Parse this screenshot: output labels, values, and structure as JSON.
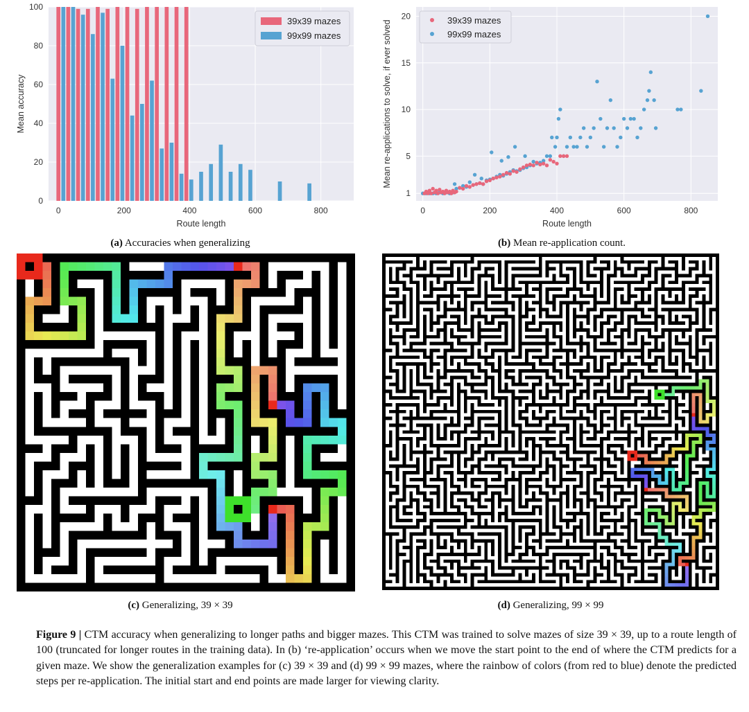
{
  "chart_data": [
    {
      "type": "bar",
      "xlabel": "Route length",
      "ylabel": "Mean accuracy",
      "xlim": [
        -30,
        900
      ],
      "ylim": [
        0,
        100
      ],
      "xticks": [
        0,
        200,
        400,
        600,
        800
      ],
      "yticks": [
        0,
        20,
        40,
        60,
        80,
        100
      ],
      "grid": true,
      "legend_position": "top-right",
      "series": [
        {
          "name": "39x39 mazes",
          "color": "#e8677b",
          "x": [
            0,
            30,
            60,
            90,
            120,
            150,
            180,
            210,
            240,
            270,
            300,
            330,
            360,
            390
          ],
          "values": [
            100,
            100,
            99,
            99,
            100,
            99,
            100,
            100,
            99,
            100,
            100,
            100,
            100,
            100
          ]
        },
        {
          "name": "99x99 mazes",
          "color": "#57a3d2",
          "x": [
            15,
            45,
            75,
            105,
            135,
            165,
            195,
            225,
            255,
            285,
            315,
            345,
            375,
            405,
            435,
            465,
            495,
            525,
            555,
            585,
            615,
            645,
            675,
            765,
            845
          ],
          "values": [
            100,
            100,
            96,
            86,
            97,
            63,
            80,
            44,
            50,
            62,
            27,
            30,
            14,
            11,
            15,
            19,
            29,
            15,
            19,
            16,
            0,
            0,
            10,
            9,
            0
          ]
        }
      ]
    },
    {
      "type": "scatter",
      "xlabel": "Route length",
      "ylabel": "Mean re-applications to solve, if ever solved",
      "xlim": [
        -20,
        880
      ],
      "ylim": [
        0.2,
        21
      ],
      "xticks": [
        0,
        200,
        400,
        600,
        800
      ],
      "yticks": [
        1,
        5,
        10,
        15,
        20
      ],
      "grid": true,
      "legend_position": "top-left",
      "series": [
        {
          "name": "39x39 mazes",
          "color": "#e8677b",
          "points": [
            [
              5,
              1
            ],
            [
              10,
              1.2
            ],
            [
              15,
              1
            ],
            [
              20,
              1.3
            ],
            [
              25,
              1
            ],
            [
              30,
              1.5
            ],
            [
              35,
              1.1
            ],
            [
              40,
              1.3
            ],
            [
              45,
              1
            ],
            [
              50,
              1.4
            ],
            [
              55,
              1.1
            ],
            [
              60,
              1.2
            ],
            [
              65,
              1
            ],
            [
              70,
              1.3
            ],
            [
              75,
              1.1
            ],
            [
              80,
              1.2
            ],
            [
              85,
              1
            ],
            [
              90,
              1.3
            ],
            [
              95,
              1.1
            ],
            [
              100,
              1.2
            ],
            [
              110,
              1.6
            ],
            [
              120,
              1.5
            ],
            [
              130,
              1.8
            ],
            [
              140,
              1.7
            ],
            [
              150,
              1.9
            ],
            [
              160,
              2
            ],
            [
              170,
              2.1
            ],
            [
              180,
              2
            ],
            [
              190,
              2.3
            ],
            [
              200,
              2.4
            ],
            [
              210,
              2.6
            ],
            [
              220,
              2.7
            ],
            [
              230,
              2.8
            ],
            [
              240,
              3
            ],
            [
              250,
              3.2
            ],
            [
              260,
              3.1
            ],
            [
              270,
              3.4
            ],
            [
              280,
              3.3
            ],
            [
              290,
              3.6
            ],
            [
              300,
              3.8
            ],
            [
              310,
              4
            ],
            [
              320,
              4.1
            ],
            [
              330,
              4
            ],
            [
              340,
              4.3
            ],
            [
              350,
              4.1
            ],
            [
              360,
              4.2
            ],
            [
              370,
              4
            ],
            [
              380,
              4.6
            ],
            [
              390,
              4.4
            ],
            [
              400,
              4.2
            ],
            [
              410,
              5
            ],
            [
              420,
              5
            ],
            [
              430,
              5
            ]
          ]
        },
        {
          "name": "99x99 mazes",
          "color": "#57a3d2",
          "points": [
            [
              0,
              1
            ],
            [
              10,
              1
            ],
            [
              20,
              1
            ],
            [
              30,
              1
            ],
            [
              40,
              1
            ],
            [
              50,
              1.1
            ],
            [
              60,
              1
            ],
            [
              70,
              1.1
            ],
            [
              80,
              1
            ],
            [
              90,
              1.1
            ],
            [
              95,
              2
            ],
            [
              100,
              1.5
            ],
            [
              110,
              1.6
            ],
            [
              120,
              1.8
            ],
            [
              130,
              1.7
            ],
            [
              140,
              2.2
            ],
            [
              150,
              1.9
            ],
            [
              155,
              3
            ],
            [
              160,
              2
            ],
            [
              170,
              2.1
            ],
            [
              175,
              2.6
            ],
            [
              180,
              2
            ],
            [
              190,
              2.4
            ],
            [
              200,
              2.5
            ],
            [
              205,
              5.4
            ],
            [
              210,
              2.6
            ],
            [
              220,
              2.8
            ],
            [
              230,
              3
            ],
            [
              235,
              4.5
            ],
            [
              240,
              2.9
            ],
            [
              250,
              3.1
            ],
            [
              255,
              4.9
            ],
            [
              260,
              3.3
            ],
            [
              270,
              3.5
            ],
            [
              275,
              6
            ],
            [
              280,
              3.4
            ],
            [
              290,
              3.5
            ],
            [
              300,
              3.7
            ],
            [
              305,
              5
            ],
            [
              310,
              3.8
            ],
            [
              320,
              4
            ],
            [
              330,
              4.4
            ],
            [
              340,
              4.2
            ],
            [
              350,
              4.3
            ],
            [
              360,
              4.5
            ],
            [
              370,
              5
            ],
            [
              380,
              5
            ],
            [
              385,
              7
            ],
            [
              395,
              6
            ],
            [
              400,
              7
            ],
            [
              405,
              9
            ],
            [
              410,
              10
            ],
            [
              420,
              5
            ],
            [
              430,
              6
            ],
            [
              440,
              7
            ],
            [
              450,
              6
            ],
            [
              460,
              6
            ],
            [
              470,
              7
            ],
            [
              480,
              8
            ],
            [
              490,
              6
            ],
            [
              500,
              7
            ],
            [
              510,
              8
            ],
            [
              520,
              13
            ],
            [
              530,
              9
            ],
            [
              540,
              6
            ],
            [
              550,
              8
            ],
            [
              560,
              11
            ],
            [
              570,
              8
            ],
            [
              580,
              6
            ],
            [
              590,
              7
            ],
            [
              600,
              9
            ],
            [
              610,
              8
            ],
            [
              620,
              9
            ],
            [
              630,
              9
            ],
            [
              640,
              7
            ],
            [
              650,
              8
            ],
            [
              660,
              10
            ],
            [
              670,
              11
            ],
            [
              675,
              12
            ],
            [
              680,
              14
            ],
            [
              690,
              11
            ],
            [
              695,
              8
            ],
            [
              760,
              10
            ],
            [
              770,
              10
            ],
            [
              830,
              12
            ],
            [
              850,
              20
            ]
          ]
        }
      ]
    }
  ],
  "subcaptions": {
    "a": {
      "tag": "(a)",
      "text": "Accuracies when generalizing"
    },
    "b": {
      "tag": "(b)",
      "text": "Mean re-application count."
    },
    "c": {
      "tag": "(c)",
      "text": "Generalizing, 39 × 39"
    },
    "d": {
      "tag": "(d)",
      "text": "Generalizing, 99 × 99"
    }
  },
  "caption": {
    "label": "Figure 9",
    "separator": " | ",
    "text": "CTM accuracy when generalizing to longer paths and bigger mazes. This CTM was trained to solve mazes of size 39 × 39, up to a route length of 100 (truncated for longer routes in the training data). In (b) ‘re-application’ occurs when we move the start point to the end of where the CTM predicts for a given maze. We show the generalization examples for (c) 39 × 39 and (d) 99 × 99 mazes, where the rainbow of colors (from red to blue) denote the predicted steps per re-application. The initial start and end points are made larger for viewing clarity."
  },
  "colors": {
    "panel_bg": "#eaeaf2",
    "grid": "#ffffff",
    "maze_wall": "#000000",
    "maze_path": "#ffffff",
    "start_marker": "#e8291c",
    "end_marker": "#3ee02b"
  }
}
